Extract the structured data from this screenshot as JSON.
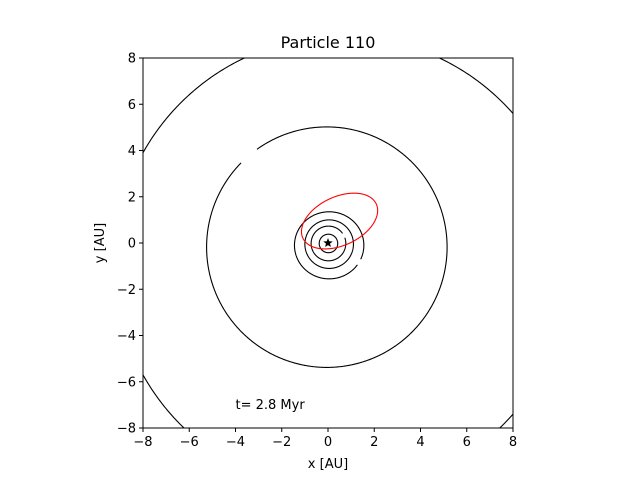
{
  "chart_data": {
    "type": "line",
    "title": "Particle 110",
    "xlabel": "x [AU]",
    "ylabel": "y [AU]",
    "xlim": [
      -8,
      8
    ],
    "ylim": [
      -8,
      8
    ],
    "xticks": [
      -8,
      -6,
      -4,
      -2,
      0,
      2,
      4,
      6,
      8
    ],
    "yticks": [
      -8,
      -6,
      -4,
      -2,
      0,
      2,
      4,
      6,
      8
    ],
    "grid": false,
    "star": {
      "x": 0,
      "y": 0,
      "marker": "star",
      "color": "#000000"
    },
    "series": [
      {
        "kind": "ellipse",
        "center": [
          0.02,
          -0.02
        ],
        "a": 0.4,
        "b": 0.4,
        "tilt_deg": 0,
        "color": "#000000",
        "gap_deg": []
      },
      {
        "kind": "ellipse",
        "center": [
          0.02,
          -0.02
        ],
        "a": 0.75,
        "b": 0.75,
        "tilt_deg": 0,
        "color": "#000000",
        "gap_deg": [
          20,
          35
        ]
      },
      {
        "kind": "ellipse",
        "center": [
          0.05,
          -0.05
        ],
        "a": 1.05,
        "b": 1.05,
        "tilt_deg": 0,
        "color": "#000000",
        "gap_deg": []
      },
      {
        "kind": "ellipse",
        "center": [
          0.05,
          -0.1
        ],
        "a": 1.5,
        "b": 1.45,
        "tilt_deg": 0,
        "color": "#000000",
        "gap_deg": [
          -35,
          -25
        ]
      },
      {
        "kind": "ellipse",
        "center": [
          0.5,
          0.95
        ],
        "a": 1.75,
        "b": 1.05,
        "tilt_deg": 25,
        "color": "#ff0000",
        "gap_deg": []
      },
      {
        "kind": "ellipse",
        "center": [
          -0.05,
          -0.18
        ],
        "a": 5.2,
        "b": 5.2,
        "tilt_deg": 0,
        "color": "#000000",
        "gap_deg": [
          126,
          135
        ]
      },
      {
        "kind": "ellipse",
        "center": [
          0.6,
          -0.9
        ],
        "a": 9.85,
        "b": 9.85,
        "tilt_deg": 0,
        "color": "#000000",
        "gap_deg": []
      }
    ],
    "annotation": {
      "text": "t= 2.8 Myr",
      "x": -4.0,
      "y": -7.0
    }
  }
}
